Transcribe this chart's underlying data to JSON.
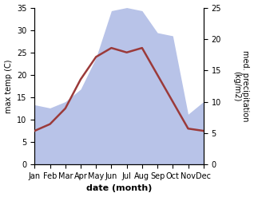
{
  "months": [
    "Jan",
    "Feb",
    "Mar",
    "Apr",
    "May",
    "Jun",
    "Jul",
    "Aug",
    "Sep",
    "Oct",
    "Nov",
    "Dec"
  ],
  "temperature": [
    7.5,
    9.0,
    12.5,
    19.0,
    24.0,
    26.0,
    25.0,
    26.0,
    20.0,
    14.0,
    8.0,
    7.5
  ],
  "precipitation": [
    9.5,
    9.0,
    10.0,
    12.0,
    17.0,
    24.5,
    25.0,
    24.5,
    21.0,
    20.5,
    8.0,
    10.0
  ],
  "temp_color": "#9b3a3a",
  "precip_color": "#b8c3e8",
  "ylabel_left": "max temp (C)",
  "ylabel_right": "med. precipitation\n(kg/m2)",
  "xlabel": "date (month)",
  "ylim_left": [
    0,
    35
  ],
  "ylim_right": [
    0,
    25
  ],
  "yticks_left": [
    0,
    5,
    10,
    15,
    20,
    25,
    30,
    35
  ],
  "yticks_right": [
    0,
    5,
    10,
    15,
    20,
    25
  ],
  "background_color": "#ffffff",
  "line_width": 1.8
}
